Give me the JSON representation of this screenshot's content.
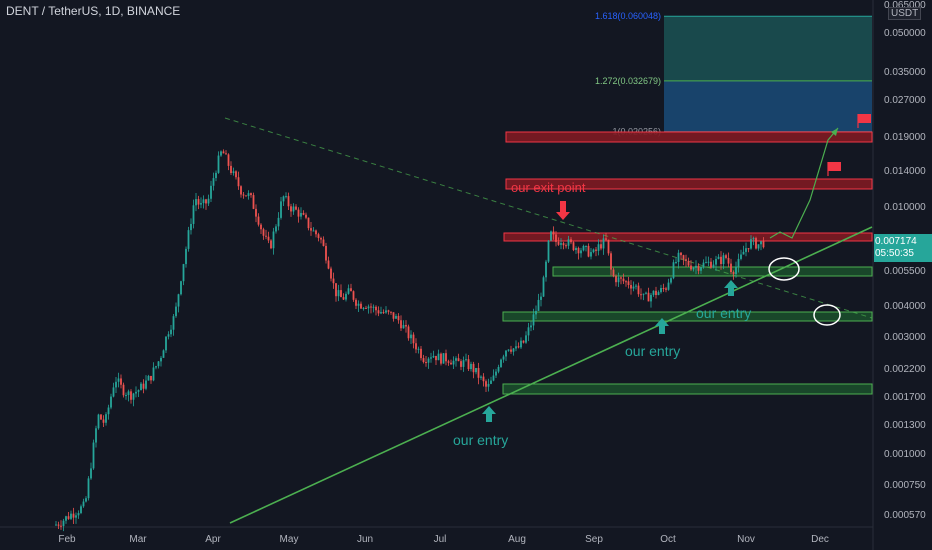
{
  "chart_data": {
    "type": "candlestick",
    "title": "DENT / TetherUS, 1D, BINANCE",
    "unit": "USDT",
    "xlabels": [
      "Feb",
      "Mar",
      "Apr",
      "May",
      "Jun",
      "Jul",
      "Aug",
      "Sep",
      "Oct",
      "Nov",
      "Dec"
    ],
    "yticks": [
      "0.065000",
      "0.050000",
      "0.035000",
      "0.027000",
      "0.019000",
      "0.014000",
      "0.010000",
      "0.007500",
      "0.005500",
      "0.004000",
      "0.003000",
      "0.002200",
      "0.001700",
      "0.001300",
      "0.001000",
      "0.000750",
      "0.000570"
    ],
    "yscale": "log",
    "current_price": "0.007174",
    "countdown": "05:50:35",
    "fib_levels": [
      {
        "label": "1.618(0.060048)",
        "value": 0.060048
      },
      {
        "label": "1.272(0.032679)",
        "value": 0.032679
      },
      {
        "label": "1(0.020256)",
        "value": 0.020256
      }
    ],
    "annotations": [
      {
        "text": "our exit point",
        "color": "#f23645"
      },
      {
        "text": "our entry",
        "color": "#26a69a"
      },
      {
        "text": "our entry",
        "color": "#26a69a"
      },
      {
        "text": "our entry",
        "color": "#26a69a"
      }
    ],
    "colors": {
      "up": "#26a69a",
      "down": "#ef5350",
      "trendline": "#4caf50",
      "resistance": "#f23645",
      "support": "#4caf50",
      "background": "#131722"
    }
  }
}
